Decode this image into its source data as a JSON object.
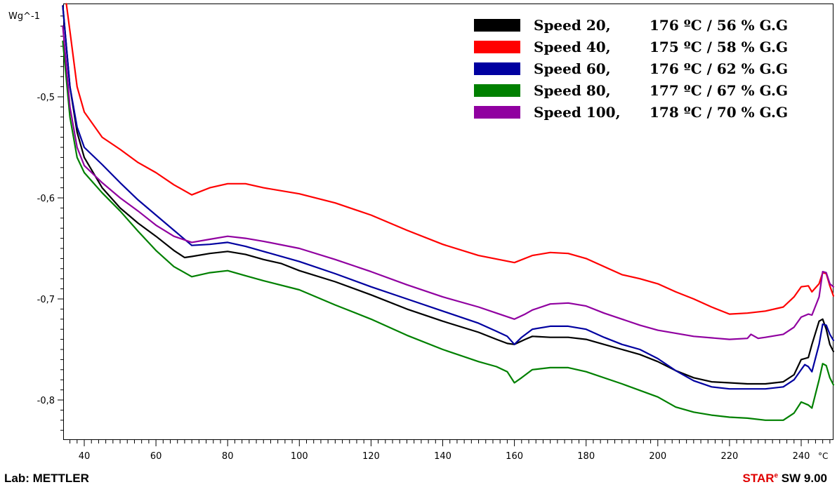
{
  "chart_data": {
    "type": "line",
    "ylabel": "Wg^-1",
    "xunit": "°C",
    "xlim": [
      33,
      250
    ],
    "ylim": [
      -0.84,
      -0.408
    ],
    "x_ticks": [
      40,
      60,
      80,
      100,
      120,
      140,
      160,
      180,
      200,
      220,
      240
    ],
    "x_tick_labels": [
      "40",
      "60",
      "80",
      "100",
      "120",
      "140",
      "160",
      "180",
      "200",
      "220",
      "240"
    ],
    "y_ticks": [
      -0.5,
      -0.6,
      -0.7,
      -0.8
    ],
    "y_tick_labels": [
      "-0,5",
      "-0,6",
      "-0,7",
      "-0,8"
    ],
    "grid": false,
    "legend_position": "top-right",
    "series": [
      {
        "name": "Speed 20,",
        "label": "176 ºC / 56 % G.G",
        "color": "#000000",
        "points": [
          [
            34,
            -0.41
          ],
          [
            36,
            -0.49
          ],
          [
            38,
            -0.535
          ],
          [
            40,
            -0.56
          ],
          [
            45,
            -0.59
          ],
          [
            50,
            -0.61
          ],
          [
            55,
            -0.625
          ],
          [
            60,
            -0.638
          ],
          [
            65,
            -0.652
          ],
          [
            68,
            -0.659
          ],
          [
            70,
            -0.658
          ],
          [
            75,
            -0.655
          ],
          [
            80,
            -0.653
          ],
          [
            85,
            -0.656
          ],
          [
            90,
            -0.661
          ],
          [
            95,
            -0.665
          ],
          [
            100,
            -0.672
          ],
          [
            110,
            -0.683
          ],
          [
            120,
            -0.696
          ],
          [
            130,
            -0.71
          ],
          [
            140,
            -0.722
          ],
          [
            150,
            -0.733
          ],
          [
            155,
            -0.74
          ],
          [
            158,
            -0.744
          ],
          [
            160,
            -0.745
          ],
          [
            163,
            -0.74
          ],
          [
            165,
            -0.737
          ],
          [
            170,
            -0.738
          ],
          [
            175,
            -0.738
          ],
          [
            180,
            -0.74
          ],
          [
            185,
            -0.745
          ],
          [
            190,
            -0.75
          ],
          [
            195,
            -0.755
          ],
          [
            200,
            -0.762
          ],
          [
            205,
            -0.771
          ],
          [
            210,
            -0.778
          ],
          [
            215,
            -0.782
          ],
          [
            220,
            -0.783
          ],
          [
            225,
            -0.784
          ],
          [
            230,
            -0.784
          ],
          [
            235,
            -0.782
          ],
          [
            238,
            -0.775
          ],
          [
            240,
            -0.76
          ],
          [
            242,
            -0.758
          ],
          [
            243,
            -0.745
          ],
          [
            245,
            -0.722
          ],
          [
            246,
            -0.72
          ],
          [
            247,
            -0.73
          ],
          [
            248,
            -0.745
          ],
          [
            249,
            -0.752
          ]
        ]
      },
      {
        "name": "Speed 40,",
        "label": "175 ºC / 58 % G.G",
        "color": "#ff0000",
        "points": [
          [
            35,
            -0.408
          ],
          [
            36,
            -0.435
          ],
          [
            38,
            -0.49
          ],
          [
            40,
            -0.515
          ],
          [
            45,
            -0.54
          ],
          [
            50,
            -0.552
          ],
          [
            55,
            -0.565
          ],
          [
            60,
            -0.575
          ],
          [
            65,
            -0.587
          ],
          [
            70,
            -0.597
          ],
          [
            75,
            -0.59
          ],
          [
            80,
            -0.586
          ],
          [
            85,
            -0.586
          ],
          [
            90,
            -0.59
          ],
          [
            100,
            -0.596
          ],
          [
            110,
            -0.605
          ],
          [
            120,
            -0.617
          ],
          [
            130,
            -0.632
          ],
          [
            140,
            -0.646
          ],
          [
            150,
            -0.657
          ],
          [
            160,
            -0.664
          ],
          [
            165,
            -0.657
          ],
          [
            170,
            -0.654
          ],
          [
            175,
            -0.655
          ],
          [
            180,
            -0.66
          ],
          [
            185,
            -0.668
          ],
          [
            190,
            -0.676
          ],
          [
            195,
            -0.68
          ],
          [
            200,
            -0.685
          ],
          [
            205,
            -0.693
          ],
          [
            210,
            -0.7
          ],
          [
            215,
            -0.708
          ],
          [
            220,
            -0.715
          ],
          [
            225,
            -0.714
          ],
          [
            230,
            -0.712
          ],
          [
            235,
            -0.708
          ],
          [
            238,
            -0.698
          ],
          [
            240,
            -0.688
          ],
          [
            242,
            -0.687
          ],
          [
            243,
            -0.693
          ],
          [
            245,
            -0.685
          ],
          [
            246,
            -0.674
          ],
          [
            247,
            -0.675
          ],
          [
            248,
            -0.687
          ],
          [
            249,
            -0.697
          ]
        ]
      },
      {
        "name": "Speed 60,",
        "label": "176 ºC / 62 % G.G",
        "color": "#0000a0",
        "points": [
          [
            34,
            -0.41
          ],
          [
            36,
            -0.49
          ],
          [
            38,
            -0.53
          ],
          [
            40,
            -0.55
          ],
          [
            45,
            -0.567
          ],
          [
            50,
            -0.585
          ],
          [
            55,
            -0.602
          ],
          [
            60,
            -0.617
          ],
          [
            65,
            -0.632
          ],
          [
            70,
            -0.647
          ],
          [
            75,
            -0.646
          ],
          [
            80,
            -0.644
          ],
          [
            85,
            -0.648
          ],
          [
            90,
            -0.653
          ],
          [
            100,
            -0.663
          ],
          [
            110,
            -0.675
          ],
          [
            120,
            -0.688
          ],
          [
            130,
            -0.7
          ],
          [
            140,
            -0.712
          ],
          [
            150,
            -0.724
          ],
          [
            155,
            -0.732
          ],
          [
            158,
            -0.737
          ],
          [
            160,
            -0.745
          ],
          [
            162,
            -0.738
          ],
          [
            165,
            -0.73
          ],
          [
            170,
            -0.727
          ],
          [
            175,
            -0.727
          ],
          [
            180,
            -0.73
          ],
          [
            185,
            -0.738
          ],
          [
            190,
            -0.745
          ],
          [
            195,
            -0.75
          ],
          [
            200,
            -0.759
          ],
          [
            205,
            -0.771
          ],
          [
            210,
            -0.781
          ],
          [
            215,
            -0.787
          ],
          [
            220,
            -0.789
          ],
          [
            225,
            -0.789
          ],
          [
            230,
            -0.789
          ],
          [
            235,
            -0.787
          ],
          [
            238,
            -0.78
          ],
          [
            240,
            -0.77
          ],
          [
            241,
            -0.765
          ],
          [
            242,
            -0.767
          ],
          [
            243,
            -0.772
          ],
          [
            245,
            -0.745
          ],
          [
            246,
            -0.725
          ],
          [
            247,
            -0.726
          ],
          [
            248,
            -0.735
          ],
          [
            249,
            -0.741
          ]
        ]
      },
      {
        "name": "Speed 80,",
        "label": "177 ºC / 67 % G.G",
        "color": "#008000",
        "points": [
          [
            34,
            -0.445
          ],
          [
            36,
            -0.52
          ],
          [
            38,
            -0.56
          ],
          [
            40,
            -0.575
          ],
          [
            45,
            -0.595
          ],
          [
            50,
            -0.613
          ],
          [
            55,
            -0.633
          ],
          [
            60,
            -0.652
          ],
          [
            65,
            -0.668
          ],
          [
            70,
            -0.678
          ],
          [
            75,
            -0.674
          ],
          [
            80,
            -0.672
          ],
          [
            85,
            -0.677
          ],
          [
            90,
            -0.682
          ],
          [
            100,
            -0.691
          ],
          [
            110,
            -0.706
          ],
          [
            120,
            -0.72
          ],
          [
            130,
            -0.736
          ],
          [
            140,
            -0.75
          ],
          [
            150,
            -0.762
          ],
          [
            155,
            -0.767
          ],
          [
            158,
            -0.772
          ],
          [
            160,
            -0.783
          ],
          [
            162,
            -0.778
          ],
          [
            165,
            -0.77
          ],
          [
            170,
            -0.768
          ],
          [
            175,
            -0.768
          ],
          [
            180,
            -0.772
          ],
          [
            190,
            -0.784
          ],
          [
            200,
            -0.797
          ],
          [
            205,
            -0.807
          ],
          [
            210,
            -0.812
          ],
          [
            215,
            -0.815
          ],
          [
            220,
            -0.817
          ],
          [
            225,
            -0.818
          ],
          [
            230,
            -0.82
          ],
          [
            235,
            -0.82
          ],
          [
            238,
            -0.813
          ],
          [
            240,
            -0.802
          ],
          [
            242,
            -0.805
          ],
          [
            243,
            -0.808
          ],
          [
            245,
            -0.78
          ],
          [
            246,
            -0.764
          ],
          [
            247,
            -0.766
          ],
          [
            248,
            -0.778
          ],
          [
            249,
            -0.785
          ]
        ]
      },
      {
        "name": "Speed 100,",
        "label": "178 ºC / 70 % G.G",
        "color": "#9000a0",
        "points": [
          [
            34,
            -0.43
          ],
          [
            36,
            -0.51
          ],
          [
            38,
            -0.55
          ],
          [
            40,
            -0.568
          ],
          [
            45,
            -0.585
          ],
          [
            50,
            -0.6
          ],
          [
            55,
            -0.613
          ],
          [
            60,
            -0.627
          ],
          [
            65,
            -0.638
          ],
          [
            70,
            -0.644
          ],
          [
            75,
            -0.641
          ],
          [
            80,
            -0.638
          ],
          [
            85,
            -0.64
          ],
          [
            90,
            -0.643
          ],
          [
            100,
            -0.65
          ],
          [
            110,
            -0.661
          ],
          [
            120,
            -0.673
          ],
          [
            130,
            -0.686
          ],
          [
            140,
            -0.698
          ],
          [
            150,
            -0.708
          ],
          [
            155,
            -0.714
          ],
          [
            160,
            -0.72
          ],
          [
            163,
            -0.715
          ],
          [
            165,
            -0.711
          ],
          [
            170,
            -0.705
          ],
          [
            175,
            -0.704
          ],
          [
            180,
            -0.707
          ],
          [
            185,
            -0.714
          ],
          [
            190,
            -0.72
          ],
          [
            195,
            -0.726
          ],
          [
            200,
            -0.731
          ],
          [
            210,
            -0.737
          ],
          [
            220,
            -0.74
          ],
          [
            225,
            -0.739
          ],
          [
            226,
            -0.735
          ],
          [
            228,
            -0.739
          ],
          [
            230,
            -0.738
          ],
          [
            235,
            -0.735
          ],
          [
            238,
            -0.728
          ],
          [
            240,
            -0.718
          ],
          [
            242,
            -0.715
          ],
          [
            243,
            -0.716
          ],
          [
            245,
            -0.698
          ],
          [
            246,
            -0.673
          ],
          [
            247,
            -0.674
          ],
          [
            248,
            -0.685
          ],
          [
            249,
            -0.688
          ]
        ]
      }
    ]
  },
  "footer": {
    "lab": "Lab: METTLER",
    "sw_star": "STAR",
    "sw_sup": "e",
    "sw_version": " SW 9.00"
  }
}
